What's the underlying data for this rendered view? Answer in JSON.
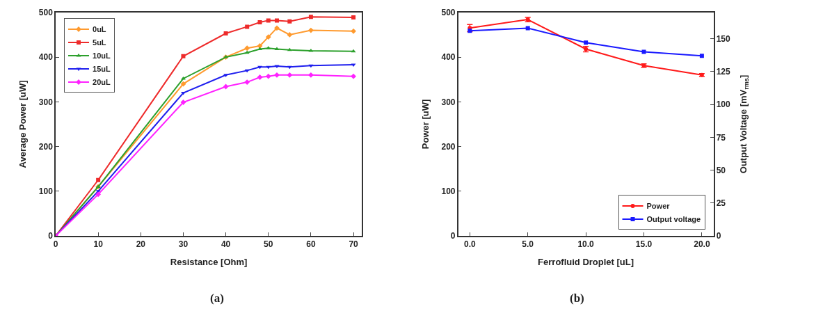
{
  "chart_data": [
    {
      "type": "line",
      "xlabel": "Resistance [Ohm]",
      "ylabel": "Average Power [uW]",
      "annotations": [
        "(a)"
      ],
      "x": [
        0,
        10,
        30,
        40,
        45,
        48,
        50,
        52,
        55,
        60,
        70
      ],
      "series": [
        {
          "name": "0uL",
          "color": "#ff9a2e",
          "marker": "diamond",
          "values": [
            0,
            110,
            340,
            400,
            420,
            425,
            445,
            465,
            450,
            460,
            458
          ]
        },
        {
          "name": "5uL",
          "color": "#ee2b2b",
          "marker": "square",
          "values": [
            0,
            125,
            402,
            453,
            468,
            478,
            482,
            482,
            480,
            490,
            489
          ]
        },
        {
          "name": "10uL",
          "color": "#2ca02c",
          "marker": "triangle",
          "values": [
            0,
            110,
            352,
            400,
            410,
            418,
            420,
            418,
            416,
            414,
            413
          ]
        },
        {
          "name": "15uL",
          "color": "#1f1fee",
          "marker": "triangle-down",
          "values": [
            0,
            100,
            320,
            360,
            370,
            378,
            378,
            380,
            378,
            381,
            383
          ]
        },
        {
          "name": "20uL",
          "color": "#ff22ff",
          "marker": "diamond",
          "values": [
            0,
            93,
            299,
            334,
            344,
            355,
            357,
            360,
            360,
            360,
            357
          ]
        }
      ],
      "xlim": [
        0,
        72
      ],
      "xticks": [
        0,
        10,
        20,
        30,
        40,
        50,
        60,
        70
      ],
      "ylim": [
        0,
        500
      ],
      "yticks": [
        0,
        100,
        200,
        300,
        400,
        500
      ],
      "legend": "top left"
    },
    {
      "type": "line",
      "xlabel": "Ferrofluid Droplet [uL]",
      "ylabel": "Power [uW]",
      "y2label": "Output Voltage [mV$_{rms}$]",
      "annotations": [
        "(b)"
      ],
      "x": [
        0,
        5,
        10,
        15,
        20
      ],
      "series": [
        {
          "name": "Power",
          "color": "#ff1a1a",
          "marker": "circle",
          "values": [
            465,
            484,
            418,
            381,
            360
          ],
          "errors": [
            8,
            5,
            6,
            4,
            3
          ]
        },
        {
          "name": "Output voltage",
          "color": "#1a1aff",
          "marker": "square",
          "axis": "y2",
          "values": [
            156,
            158,
            147,
            140,
            137
          ]
        }
      ],
      "xlim": [
        -1,
        21
      ],
      "xticks": [
        {
          "value": 0,
          "label": "0.0"
        },
        {
          "value": 5,
          "label": "5.0"
        },
        {
          "value": 10,
          "label": "10.0"
        },
        {
          "value": 15,
          "label": "15.0"
        },
        {
          "value": 20,
          "label": "20.0"
        }
      ],
      "ylim": [
        0,
        500
      ],
      "yticks": [
        0,
        100,
        200,
        300,
        400,
        500
      ],
      "y2lim": [
        0,
        170
      ],
      "y2ticks": [
        0,
        25,
        50,
        75,
        100,
        125,
        150
      ],
      "legend": "bottom right"
    }
  ]
}
